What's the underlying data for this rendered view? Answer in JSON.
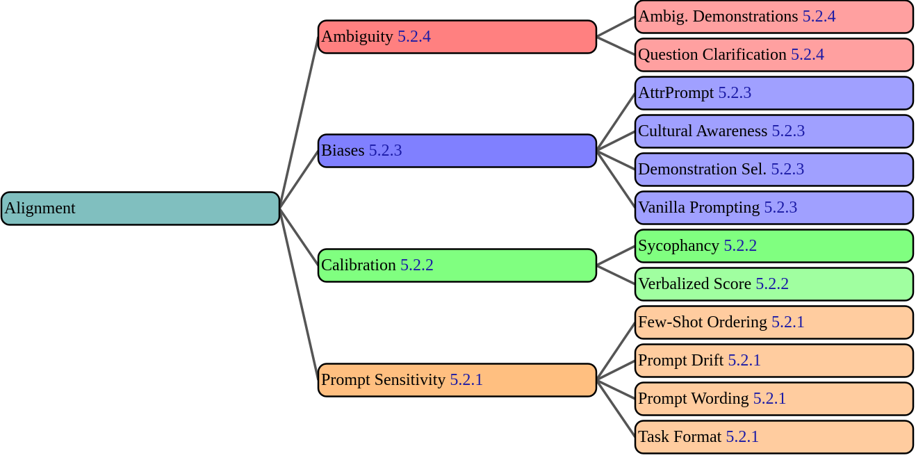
{
  "root": {
    "label": "Alignment"
  },
  "branches": [
    {
      "label": "Ambiguity",
      "ref": "5.2.4",
      "children": [
        {
          "label": "Ambig.  Demonstrations",
          "ref": "5.2.4"
        },
        {
          "label": "Question Clarification",
          "ref": "5.2.4"
        }
      ]
    },
    {
      "label": "Biases",
      "ref": "5.2.3",
      "children": [
        {
          "label": "AttrPrompt",
          "ref": "5.2.3"
        },
        {
          "label": "Cultural  Awareness",
          "ref": "5.2.3"
        },
        {
          "label": "Demonstration Sel.",
          "ref": "5.2.3"
        },
        {
          "label": "Vanilla Prompting",
          "ref": "5.2.3"
        }
      ]
    },
    {
      "label": "Calibration",
      "ref": "5.2.2",
      "children": [
        {
          "label": "Sycophancy",
          "ref": "5.2.2"
        },
        {
          "label": "Verbalized Score",
          "ref": "5.2.2"
        }
      ]
    },
    {
      "label": "Prompt Sensitivity",
      "ref": "5.2.1",
      "children": [
        {
          "label": "Few-Shot Ordering",
          "ref": "5.2.1"
        },
        {
          "label": "Prompt Drift",
          "ref": "5.2.1"
        },
        {
          "label": "Prompt  Wording",
          "ref": "5.2.1"
        },
        {
          "label": "Task Format",
          "ref": "5.2.1"
        }
      ]
    }
  ]
}
